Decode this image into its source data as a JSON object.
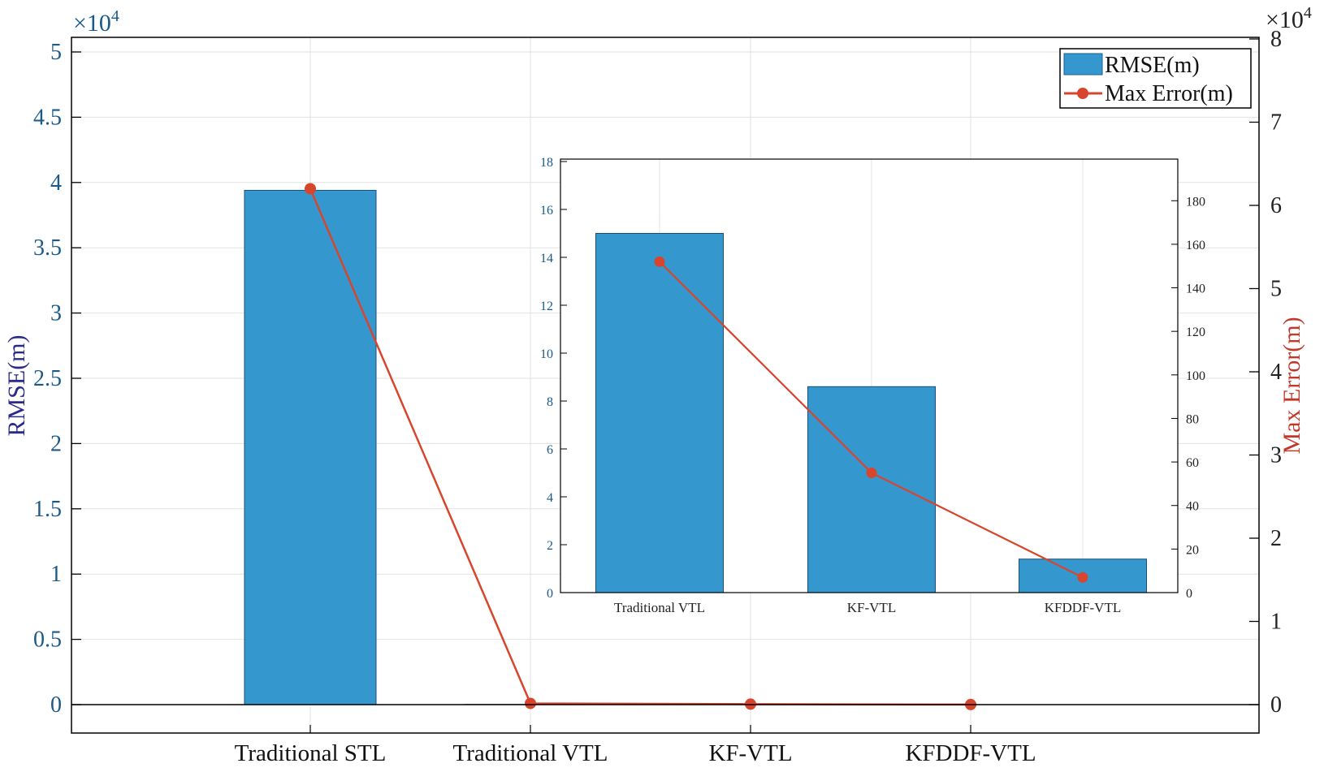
{
  "chart_data": [
    {
      "type": "bar+line",
      "categories": [
        "Traditional STL",
        "Traditional VTL",
        "KF-VTL",
        "KFDDF-VTL"
      ],
      "series": [
        {
          "name": "RMSE(m)",
          "type": "bar",
          "axis": "left",
          "values": [
            39400,
            15,
            8.6,
            1.4
          ]
        },
        {
          "name": "Max Error(m)",
          "type": "line",
          "axis": "right",
          "values": [
            62000,
            152,
            55,
            7
          ]
        }
      ],
      "ylabel_left": "RMSE(m)",
      "ylabel_right": "Max Error(m)",
      "ylim_left": [
        0,
        52000
      ],
      "ylim_right": [
        0,
        80000
      ],
      "yticks_left": [
        0,
        5000,
        10000,
        15000,
        20000,
        25000,
        30000,
        35000,
        40000,
        45000,
        50000
      ],
      "yticks_left_labels": [
        "0",
        "0.5",
        "1",
        "1.5",
        "2",
        "2.5",
        "3",
        "3.5",
        "4",
        "4.5",
        "5"
      ],
      "yticks_right": [
        0,
        10000,
        20000,
        30000,
        40000,
        50000,
        60000,
        70000,
        80000
      ],
      "yticks_right_labels": [
        "0",
        "1",
        "2",
        "3",
        "4",
        "5",
        "6",
        "7",
        "8"
      ],
      "left_exponent": "×10",
      "right_exponent": "×10",
      "exponent_power": "4",
      "grid": true,
      "legend": "top-right",
      "colors": {
        "bar": "#3498cf",
        "line": "#d8452d",
        "left_axis": "#1a5a8a",
        "right_axis": "#c0392b"
      }
    },
    {
      "type": "bar+line",
      "inset": true,
      "categories": [
        "Traditional VTL",
        "KF-VTL",
        "KFDDF-VTL"
      ],
      "series": [
        {
          "name": "RMSE(m)",
          "type": "bar",
          "axis": "left",
          "values": [
            15,
            8.6,
            1.4
          ]
        },
        {
          "name": "Max Error(m)",
          "type": "line",
          "axis": "right",
          "values": [
            152,
            55,
            7
          ]
        }
      ],
      "ylim_left": [
        0,
        18
      ],
      "ylim_right": [
        0,
        198
      ],
      "yticks_left": [
        0,
        2,
        4,
        6,
        8,
        10,
        12,
        14,
        16,
        18
      ],
      "yticks_left_labels": [
        "0",
        "2",
        "4",
        "6",
        "8",
        "10",
        "12",
        "14",
        "16",
        "18"
      ],
      "yticks_right": [
        0,
        20,
        40,
        60,
        80,
        100,
        120,
        140,
        160,
        180
      ],
      "yticks_right_labels": [
        "0",
        "20",
        "40",
        "60",
        "80",
        "100",
        "120",
        "140",
        "160",
        "180"
      ],
      "grid": true
    }
  ]
}
